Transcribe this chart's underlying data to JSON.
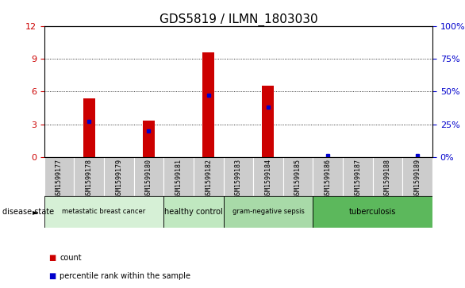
{
  "title": "GDS5819 / ILMN_1803030",
  "samples": [
    "GSM1599177",
    "GSM1599178",
    "GSM1599179",
    "GSM1599180",
    "GSM1599181",
    "GSM1599182",
    "GSM1599183",
    "GSM1599184",
    "GSM1599185",
    "GSM1599186",
    "GSM1599187",
    "GSM1599188",
    "GSM1599189"
  ],
  "count_values": [
    0,
    5.4,
    0,
    3.3,
    0,
    9.6,
    0,
    6.5,
    0,
    0,
    0,
    0,
    0
  ],
  "percentile_values": [
    0,
    27,
    0,
    20,
    0,
    47,
    0,
    38,
    0,
    1.2,
    0,
    0,
    1.2
  ],
  "ylim_left": [
    0,
    12
  ],
  "ylim_right": [
    0,
    100
  ],
  "yticks_left": [
    0,
    3,
    6,
    9,
    12
  ],
  "yticks_right": [
    0,
    25,
    50,
    75,
    100
  ],
  "ytick_labels_right": [
    "0%",
    "25%",
    "50%",
    "75%",
    "100%"
  ],
  "groups": [
    {
      "label": "metastatic breast cancer",
      "start": 0,
      "end": 3,
      "color": "#d6f0d6"
    },
    {
      "label": "healthy control",
      "start": 4,
      "end": 5,
      "color": "#c0e8c0"
    },
    {
      "label": "gram-negative sepsis",
      "start": 6,
      "end": 8,
      "color": "#a8daa8"
    },
    {
      "label": "tuberculosis",
      "start": 9,
      "end": 12,
      "color": "#5cb85c"
    }
  ],
  "disease_state_label": "disease state",
  "legend_count_label": "count",
  "legend_pct_label": "percentile rank within the sample",
  "bar_color": "#cc0000",
  "dot_color": "#0000cc",
  "bg_color": "#ffffff",
  "tick_color_left": "#cc0000",
  "tick_color_right": "#0000cc",
  "title_fontsize": 11,
  "tick_fontsize": 8,
  "label_fontsize": 8,
  "sample_bg": "#cccccc"
}
